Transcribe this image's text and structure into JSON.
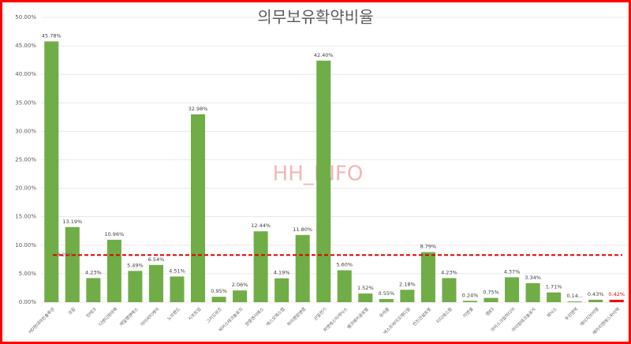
{
  "chart_data": {
    "type": "bar",
    "title": "의무보유확약비율",
    "watermark": "HH_INFO",
    "categories": [
      "HD현대마린솔루션",
      "코칩",
      "민테크",
      "디앤디파마텍",
      "제일엠앤에스",
      "아이씨티케이",
      "노브랜드",
      "시프트업",
      "그리드위즈",
      "씨어스테크놀로지",
      "한중엔시에스",
      "에스오에스랩",
      "하이젠알앤엠",
      "산일전기",
      "피앤에스미캐닉스",
      "뱅크웨어글로벌",
      "유라클",
      "넥스트바이오메디컬",
      "전진건설로봇",
      "티디에스팜",
      "이엔셀",
      "엠83",
      "아이스크림미디어",
      "아이빔테크놀로지",
      "제닉스",
      "우진엔텍",
      "에이치브이엠",
      "에이치엔에스하이텍"
    ],
    "values": [
      45.78,
      13.19,
      4.23,
      10.96,
      5.49,
      6.54,
      4.51,
      32.98,
      0.95,
      2.06,
      12.44,
      4.19,
      11.8,
      42.4,
      5.6,
      1.52,
      0.55,
      2.18,
      8.79,
      4.23,
      0.24,
      0.75,
      4.37,
      3.34,
      1.71,
      0.14,
      0.43,
      0.42
    ],
    "value_labels": [
      "45.78%",
      "13.19%",
      "4.23%",
      "10.96%",
      "5.49%",
      "6.54%",
      "4.51%",
      "32.98%",
      "0.95%",
      "2.06%",
      "12.44%",
      "4.19%",
      "11.80%",
      "42.40%",
      "5.60%",
      "1.52%",
      "0.55%",
      "2.18%",
      "8.79%",
      "4.23%",
      "0.24%",
      "0.75%",
      "4.37%",
      "3.34%",
      "1.71%",
      "0.14...",
      "0.43%",
      "0.42%"
    ],
    "colors": [
      "#70ad47",
      "#70ad47",
      "#70ad47",
      "#70ad47",
      "#70ad47",
      "#70ad47",
      "#70ad47",
      "#70ad47",
      "#70ad47",
      "#70ad47",
      "#70ad47",
      "#70ad47",
      "#70ad47",
      "#70ad47",
      "#70ad47",
      "#70ad47",
      "#70ad47",
      "#70ad47",
      "#70ad47",
      "#70ad47",
      "#70ad47",
      "#70ad47",
      "#70ad47",
      "#70ad47",
      "#70ad47",
      "#70ad47",
      "#70ad47",
      "#ff0000"
    ],
    "average": {
      "value": 8.28,
      "label": "8.28%",
      "color": "#e00000"
    },
    "ylim": [
      0,
      50
    ],
    "yticks": [
      {
        "value": 0,
        "label": "0.00%"
      },
      {
        "value": 5,
        "label": "5.00%"
      },
      {
        "value": 10,
        "label": "10.00%"
      },
      {
        "value": 15,
        "label": "15.00%"
      },
      {
        "value": 20,
        "label": "20.00%"
      },
      {
        "value": 25,
        "label": "25.00%"
      },
      {
        "value": 30,
        "label": "30.00%"
      },
      {
        "value": 35,
        "label": "35.00%"
      },
      {
        "value": 40,
        "label": "40.00%"
      },
      {
        "value": 45,
        "label": "45.00%"
      },
      {
        "value": 50,
        "label": "50.00%"
      }
    ],
    "grid": true
  }
}
